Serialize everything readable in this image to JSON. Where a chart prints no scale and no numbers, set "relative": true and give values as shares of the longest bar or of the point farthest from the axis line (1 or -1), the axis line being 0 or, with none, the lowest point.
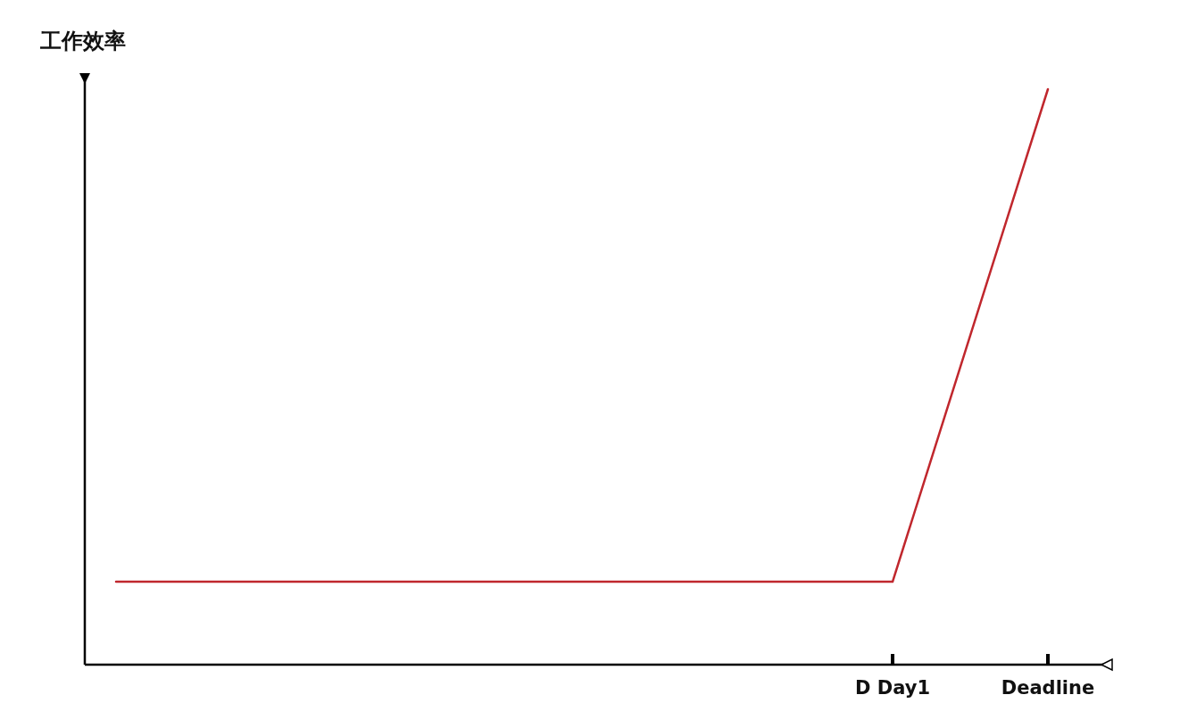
{
  "chart_data": {
    "type": "line",
    "ylabel": "工作效率",
    "relative": true,
    "categories": [
      null,
      null,
      null,
      null,
      null,
      "D Day1",
      "Deadline"
    ],
    "series": [
      {
        "color": "#c0272d",
        "values": [
          0.144,
          0.144,
          0.144,
          0.144,
          0.144,
          0.144,
          1
        ]
      }
    ],
    "grid": false,
    "marker": "none",
    "line_style": "solid"
  }
}
